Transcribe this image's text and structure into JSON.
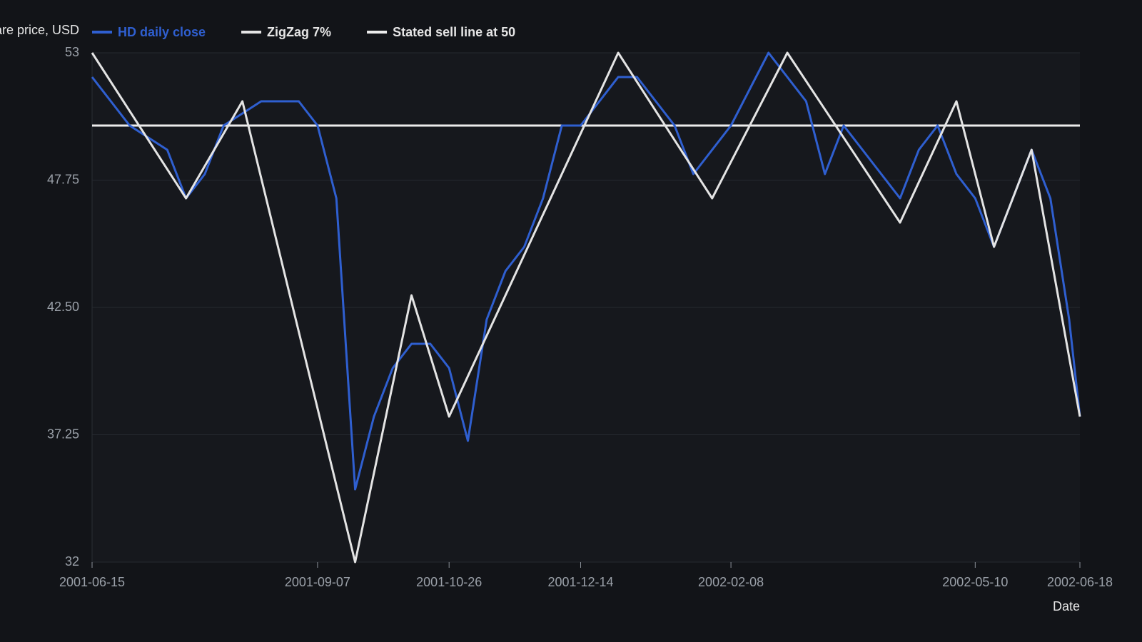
{
  "chart_data": {
    "type": "line",
    "y_label": "Share price, USD",
    "x_label": "Date",
    "x": [
      "2001-06-15",
      "2001-06-22",
      "2001-06-29",
      "2001-07-06",
      "2001-07-13",
      "2001-07-20",
      "2001-07-27",
      "2001-08-03",
      "2001-08-10",
      "2001-08-17",
      "2001-08-24",
      "2001-08-31",
      "2001-09-07",
      "2001-09-14",
      "2001-09-21",
      "2001-09-28",
      "2001-10-05",
      "2001-10-12",
      "2001-10-19",
      "2001-10-26",
      "2001-11-02",
      "2001-11-09",
      "2001-11-16",
      "2001-11-23",
      "2001-11-30",
      "2001-12-07",
      "2001-12-14",
      "2001-12-21",
      "2001-12-28",
      "2002-01-04",
      "2002-01-11",
      "2002-01-18",
      "2002-01-25",
      "2002-02-01",
      "2002-02-08",
      "2002-02-15",
      "2002-02-22",
      "2002-03-01",
      "2002-03-08",
      "2002-03-15",
      "2002-03-22",
      "2002-03-29",
      "2002-04-05",
      "2002-04-12",
      "2002-04-19",
      "2002-04-26",
      "2002-05-03",
      "2002-05-10",
      "2002-05-17",
      "2002-05-24",
      "2002-05-31",
      "2002-06-07",
      "2002-06-14",
      "2002-06-18"
    ],
    "series": [
      {
        "name": "HD daily close",
        "color": "#2f5fd0",
        "values": [
          52,
          51,
          50,
          49.5,
          49,
          47,
          48,
          50,
          50.5,
          51,
          51,
          51,
          50,
          47,
          35,
          38,
          40,
          41,
          41,
          40,
          37,
          42,
          44,
          45,
          47,
          50,
          50,
          51,
          52,
          52,
          51,
          50,
          48,
          49,
          50,
          51.5,
          53,
          52,
          51,
          48,
          50,
          49,
          48,
          47,
          49,
          50,
          48,
          47,
          45,
          47,
          49,
          47,
          42,
          38
        ]
      },
      {
        "name": "ZigZag 7%",
        "color": "#e4e4e4",
        "x": [
          "2001-06-15",
          "2001-07-20",
          "2001-08-10",
          "2001-09-21",
          "2001-10-12",
          "2001-10-26",
          "2001-12-28",
          "2002-02-01",
          "2002-03-01",
          "2002-04-12",
          "2002-05-03",
          "2002-05-17",
          "2002-05-31",
          "2002-06-18"
        ],
        "values": [
          53,
          47,
          51,
          32,
          43,
          38,
          53,
          47,
          53,
          46,
          51,
          45,
          49,
          38
        ]
      },
      {
        "name": "Stated sell line at 50",
        "color": "#ececec",
        "x": [
          "2001-06-15",
          "2002-06-18"
        ],
        "values": [
          50,
          50
        ]
      }
    ],
    "xlim": [
      "2001-06-15",
      "2002-06-18"
    ],
    "xticks": [
      "2001-06-15",
      "2001-09-07",
      "2001-10-26",
      "2001-12-14",
      "2002-02-08",
      "2002-05-10",
      "2002-06-18"
    ],
    "ylim": [
      32,
      53
    ],
    "yticks": [
      53,
      47.75,
      {
        "value": 42.5,
        "label": "42.50"
      },
      37.25,
      32
    ],
    "grid": true
  }
}
